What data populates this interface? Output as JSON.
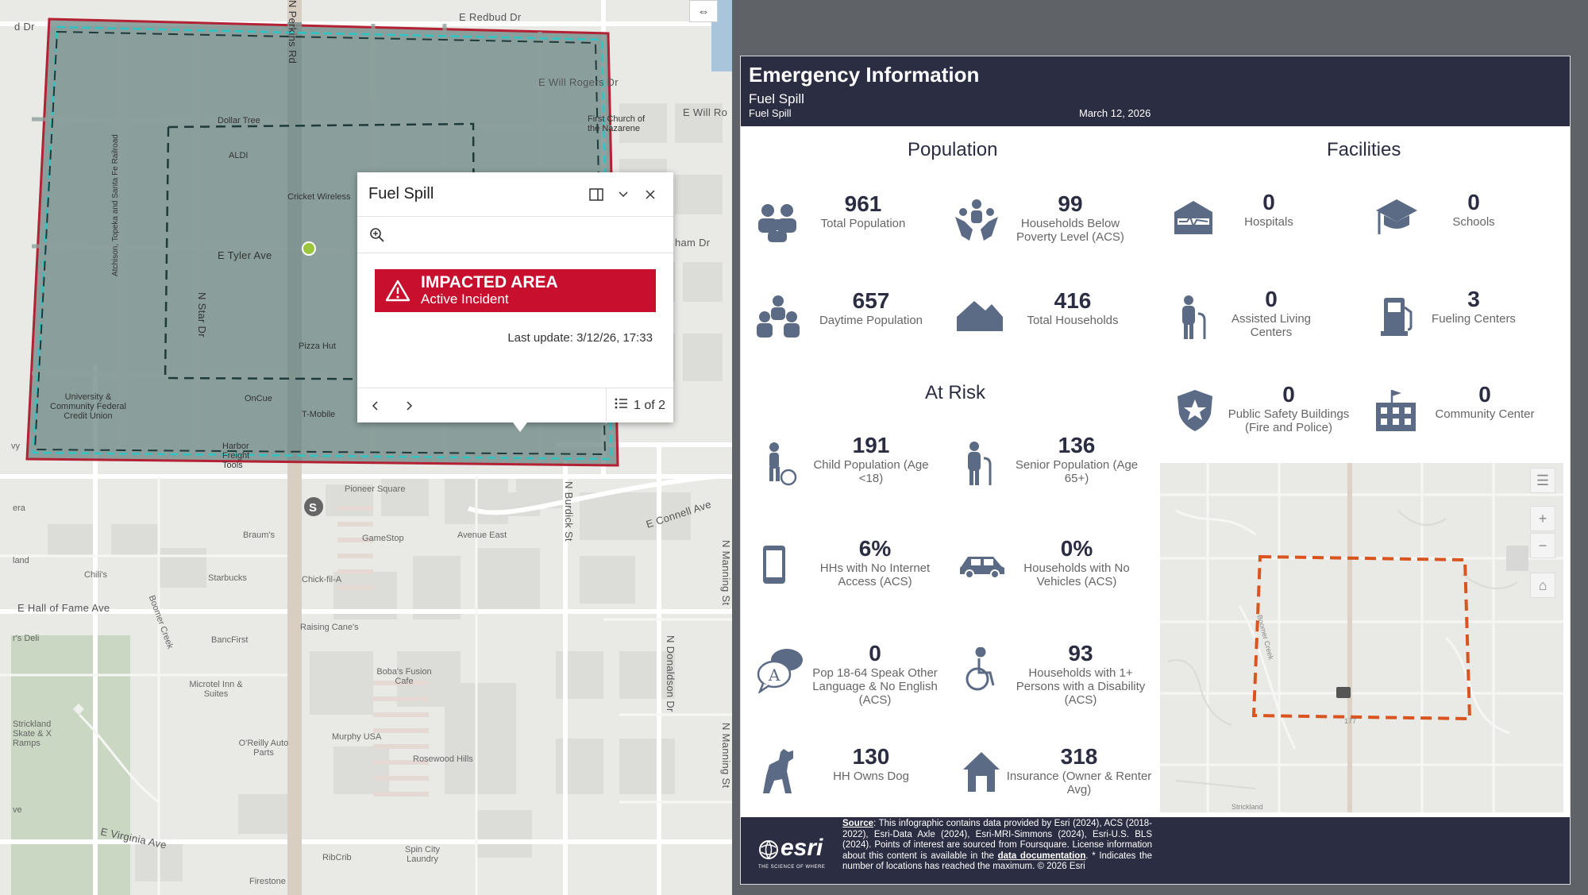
{
  "map": {
    "streets": {
      "redbud": "E Redbud Dr",
      "will_rogers": "E Will Rogers Dr",
      "will_ro": "E Will Ro",
      "d_dr": "d Dr",
      "tyler": "E Tyler Ave",
      "star": "N Star Dr",
      "hall_of_fame": "E Hall of Fame Ave",
      "connell": "E Connell Ave",
      "burdick": "N Burdick St",
      "manning1": "N Manning St",
      "manning2": "N Manning St",
      "donaldson": "N Donaldson Dr",
      "virginia": "E Virginia Ave",
      "railroad": "Atchison, Topeka and Santa Fe Railroad",
      "perkins": "N Perkins Rd",
      "boomer": "Boomer Creek",
      "ham": "ham Dr",
      "era": "era",
      "land": "land",
      "vy": "vy",
      "ve": "ve"
    },
    "places": {
      "dollar_tree": "Dollar Tree",
      "aldi": "ALDI",
      "cricket": "Cricket Wireless",
      "first_church": "First Church of the Nazarene",
      "pizza_hut": "Pizza Hut",
      "oncue": "OnCue",
      "tmobile": "T-Mobile",
      "university": "University & Community Federal Credit Union",
      "harbor": "Harbor Freight Tools",
      "pioneer": "Pioneer Square",
      "braums": "Braum's",
      "gamestop": "GameStop",
      "avenue_east": "Avenue East",
      "chilis": "Chili's",
      "starbucks": "Starbucks",
      "chickfila": "Chick-fil-A",
      "raising_canes": "Raising Cane's",
      "bancfirst": "BancFirst",
      "bobas": "Boba's Fusion Cafe",
      "microtel": "Microtel Inn & Suites",
      "murphy": "Murphy USA",
      "rosewood": "Rosewood Hills",
      "oreilly": "O'Reilly Auto Parts",
      "strickland": "Strickland Skate & X Ramps",
      "rs_deli": "r's Deli",
      "ribcrib": "RibCrib",
      "spin_city": "Spin City Laundry",
      "firestone": "Firestone"
    },
    "expand_icon": "expand-icon",
    "popup": {
      "title": "Fuel Spill",
      "dock_icon": "dock-icon",
      "collapse_icon": "chevron-down-icon",
      "close_icon": "close-icon",
      "zoom_icon": "zoom-to-icon",
      "banner_title": "IMPACTED AREA",
      "banner_sub": "Active Incident",
      "last_update": "Last update: 3/12/26, 17:33",
      "page_count": "1 of 2",
      "prev_icon": "chevron-left-icon",
      "next_icon": "chevron-right-icon",
      "list_icon": "list-icon"
    },
    "colors": {
      "impact_fill": "#c8102e",
      "polygon_outline": "#b22234",
      "buffer_outline": "#2ec4c4"
    }
  },
  "infographic": {
    "title": "Emergency Information",
    "subtitle": "Fuel Spill",
    "subtitle2": "Fuel Spill",
    "date": "March 12, 2026",
    "population": {
      "title": "Population",
      "items": [
        {
          "value": "961",
          "label": "Total Population"
        },
        {
          "value": "99",
          "label": "Households Below Poverty Level (ACS)"
        },
        {
          "value": "657",
          "label": "Daytime Population"
        },
        {
          "value": "416",
          "label": "Total Households"
        }
      ]
    },
    "at_risk": {
      "title": "At Risk",
      "items": [
        {
          "value": "191",
          "label": "Child Population (Age <18)"
        },
        {
          "value": "136",
          "label": "Senior Population (Age 65+)"
        },
        {
          "value": "6%",
          "label": "HHs with No Internet Access (ACS)"
        },
        {
          "value": "0%",
          "label": "Households with No Vehicles (ACS)"
        },
        {
          "value": "0",
          "label": "Pop 18-64 Speak Other Language & No English (ACS)"
        },
        {
          "value": "93",
          "label": "Households with 1+ Persons with a Disability (ACS)"
        },
        {
          "value": "130",
          "label": "HH Owns Dog"
        },
        {
          "value": "318",
          "label": "Insurance (Owner & Renter Avg)"
        }
      ]
    },
    "facilities": {
      "title": "Facilities",
      "items": [
        {
          "value": "0",
          "label": "Hospitals"
        },
        {
          "value": "0",
          "label": "Schools"
        },
        {
          "value": "0",
          "label": "Assisted Living Centers"
        },
        {
          "value": "3",
          "label": "Fueling Centers"
        },
        {
          "value": "0",
          "label": "Public Safety Buildings (Fire and Police)"
        },
        {
          "value": "0",
          "label": "Community Center"
        }
      ]
    },
    "minimap": {
      "label_bottom": "Strickland",
      "label_creek": "Boomer Creek",
      "label_road": "177"
    },
    "footer": {
      "esri": "esri",
      "tagline": "THE SCIENCE OF WHERE",
      "source_prefix": "Source",
      "source_text": ": This infographic contains data provided by Esri (2024), ACS (2018-2022), Esri-Data Axle (2024), Esri-MRI-Simmons (2024), Esri-U.S. BLS (2024). Points of interest are sourced from Foursquare. License information about this content is available in the ",
      "source_link": "data documentation",
      "source_end": ". * Indicates the number of locations has reached the maximum. © 2026 Esri"
    }
  }
}
